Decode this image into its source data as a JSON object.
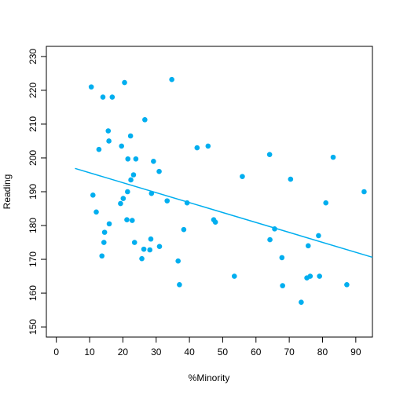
{
  "chart_data": {
    "type": "scatter",
    "xlabel": "%Minority",
    "ylabel": "Reading",
    "xlim": [
      -3,
      95
    ],
    "ylim": [
      147,
      233
    ],
    "x_ticks": [
      0,
      10,
      20,
      30,
      40,
      50,
      60,
      70,
      80,
      90
    ],
    "y_ticks": [
      150,
      160,
      170,
      180,
      190,
      200,
      210,
      220,
      230
    ],
    "x_tick_labels": [
      "0",
      "10",
      "20",
      "30",
      "40",
      "50",
      "60",
      "70",
      "80",
      "90"
    ],
    "y_tick_labels": [
      "150",
      "160",
      "170",
      "180",
      "190",
      "200",
      "210",
      "220",
      "230"
    ],
    "point_color": "#00AEEF",
    "line_color": "#00AEEF",
    "grid": false,
    "points": [
      {
        "x": 10.5,
        "y": 221.0
      },
      {
        "x": 11.0,
        "y": 189.0
      },
      {
        "x": 12.0,
        "y": 184.0
      },
      {
        "x": 12.8,
        "y": 202.5
      },
      {
        "x": 13.7,
        "y": 171.0
      },
      {
        "x": 14.0,
        "y": 218.0
      },
      {
        "x": 14.3,
        "y": 175.0
      },
      {
        "x": 14.5,
        "y": 178.0
      },
      {
        "x": 15.6,
        "y": 208.0
      },
      {
        "x": 15.8,
        "y": 205.0
      },
      {
        "x": 15.9,
        "y": 180.5
      },
      {
        "x": 16.8,
        "y": 218.0
      },
      {
        "x": 19.3,
        "y": 186.5
      },
      {
        "x": 19.6,
        "y": 203.5
      },
      {
        "x": 20.1,
        "y": 188.0
      },
      {
        "x": 20.5,
        "y": 222.3
      },
      {
        "x": 21.2,
        "y": 181.7
      },
      {
        "x": 21.4,
        "y": 190.0
      },
      {
        "x": 21.5,
        "y": 199.7
      },
      {
        "x": 22.3,
        "y": 206.5
      },
      {
        "x": 22.4,
        "y": 193.5
      },
      {
        "x": 22.8,
        "y": 181.5
      },
      {
        "x": 23.2,
        "y": 195.0
      },
      {
        "x": 23.5,
        "y": 175.0
      },
      {
        "x": 23.9,
        "y": 199.7
      },
      {
        "x": 25.7,
        "y": 170.2
      },
      {
        "x": 26.3,
        "y": 173.0
      },
      {
        "x": 26.6,
        "y": 211.3
      },
      {
        "x": 28.1,
        "y": 172.8
      },
      {
        "x": 28.4,
        "y": 176.0
      },
      {
        "x": 28.6,
        "y": 189.5
      },
      {
        "x": 29.2,
        "y": 199.0
      },
      {
        "x": 30.9,
        "y": 196.0
      },
      {
        "x": 31.0,
        "y": 173.8
      },
      {
        "x": 33.3,
        "y": 187.3
      },
      {
        "x": 34.7,
        "y": 223.2
      },
      {
        "x": 36.6,
        "y": 169.5
      },
      {
        "x": 37.0,
        "y": 162.5
      },
      {
        "x": 38.3,
        "y": 178.8
      },
      {
        "x": 39.3,
        "y": 186.7
      },
      {
        "x": 42.3,
        "y": 203.0
      },
      {
        "x": 45.6,
        "y": 203.5
      },
      {
        "x": 47.3,
        "y": 181.7
      },
      {
        "x": 47.8,
        "y": 181.0
      },
      {
        "x": 53.5,
        "y": 165.0
      },
      {
        "x": 55.9,
        "y": 194.5
      },
      {
        "x": 64.1,
        "y": 201.0
      },
      {
        "x": 64.2,
        "y": 175.8
      },
      {
        "x": 65.6,
        "y": 179.0
      },
      {
        "x": 67.8,
        "y": 170.5
      },
      {
        "x": 68.0,
        "y": 162.2
      },
      {
        "x": 70.4,
        "y": 193.7
      },
      {
        "x": 73.6,
        "y": 157.3
      },
      {
        "x": 75.3,
        "y": 164.5
      },
      {
        "x": 75.7,
        "y": 174.0
      },
      {
        "x": 76.3,
        "y": 165.0
      },
      {
        "x": 78.8,
        "y": 177.0
      },
      {
        "x": 79.1,
        "y": 165.0
      },
      {
        "x": 81.0,
        "y": 186.7
      },
      {
        "x": 83.2,
        "y": 200.2
      },
      {
        "x": 87.3,
        "y": 162.5
      },
      {
        "x": 92.5,
        "y": 190.0
      }
    ],
    "regression_line": {
      "x": [
        5.6,
        95
      ],
      "y": [
        196.9,
        170.6
      ]
    }
  }
}
